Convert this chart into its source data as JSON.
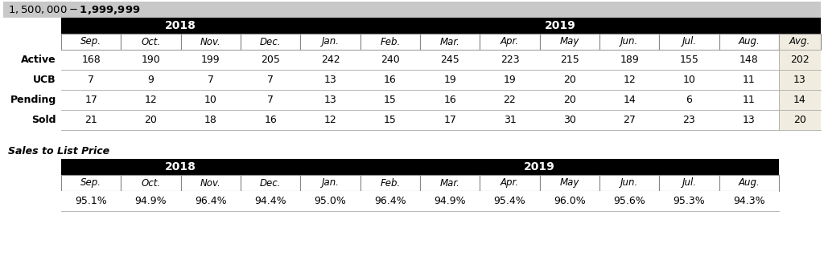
{
  "title": "$1,500,000 - $1,999,999",
  "title_bg": "#c8c8c8",
  "header_bg": "#000000",
  "avg_col_bg": "#f0ede0",
  "row_labels": [
    "Active",
    "UCB",
    "Pending",
    "Sold"
  ],
  "col_months": [
    "Sep.",
    "Oct.",
    "Nov.",
    "Dec.",
    "Jan.",
    "Feb.",
    "Mar.",
    "Apr.",
    "May",
    "Jun.",
    "Jul.",
    "Aug.",
    "Avg."
  ],
  "data": {
    "Active": [
      168,
      190,
      199,
      205,
      242,
      240,
      245,
      223,
      215,
      189,
      155,
      148,
      202
    ],
    "UCB": [
      7,
      9,
      7,
      7,
      13,
      16,
      19,
      19,
      20,
      12,
      10,
      11,
      13
    ],
    "Pending": [
      17,
      12,
      10,
      7,
      13,
      15,
      16,
      22,
      20,
      14,
      6,
      11,
      14
    ],
    "Sold": [
      21,
      20,
      18,
      16,
      12,
      15,
      17,
      31,
      30,
      27,
      23,
      13,
      20
    ]
  },
  "sales_title": "Sales to List Price",
  "sales_months": [
    "Sep.",
    "Oct.",
    "Nov.",
    "Dec.",
    "Jan.",
    "Feb.",
    "Mar.",
    "Apr.",
    "May",
    "Jun.",
    "Jul.",
    "Aug."
  ],
  "sales_data": [
    "95.1%",
    "94.9%",
    "96.4%",
    "94.4%",
    "95.0%",
    "96.4%",
    "94.9%",
    "95.4%",
    "96.0%",
    "95.6%",
    "95.3%",
    "94.3%"
  ]
}
